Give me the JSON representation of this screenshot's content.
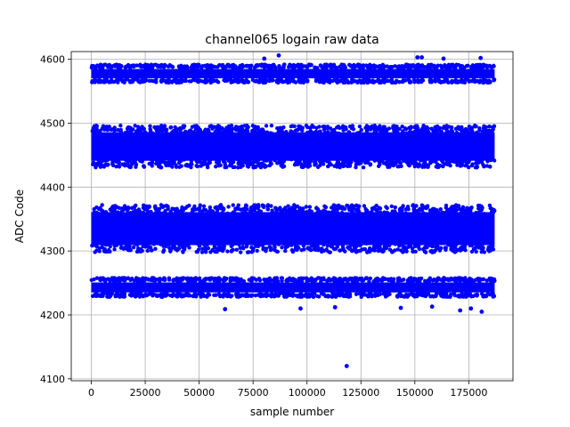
{
  "chart_data": {
    "type": "scatter",
    "title": "channel065 logain raw data",
    "xlabel": "sample number",
    "ylabel": "ADC Code",
    "xlim": [
      -9300,
      195500
    ],
    "ylim": [
      4097,
      4612
    ],
    "x_ticks": [
      0,
      25000,
      50000,
      75000,
      100000,
      125000,
      150000,
      175000
    ],
    "x_tick_labels": [
      "0",
      "25000",
      "50000",
      "75000",
      "100000",
      "125000",
      "150000",
      "175000"
    ],
    "y_ticks": [
      4100,
      4200,
      4300,
      4400,
      4500,
      4600
    ],
    "y_tick_labels": [
      "4100",
      "4200",
      "4300",
      "4400",
      "4500",
      "4600"
    ],
    "grid": true,
    "legend": "none",
    "marker_color": "#0000ff",
    "series": [
      {
        "x_range": [
          0,
          187000
        ],
        "bands": [
          {
            "y_min": 4566,
            "y_max": 4589
          },
          {
            "y_min": 4437,
            "y_max": 4490
          },
          {
            "y_min": 4305,
            "y_max": 4365
          },
          {
            "y_min": 4231,
            "y_max": 4255
          }
        ],
        "outliers": [
          {
            "x": 86900,
            "y": 4606
          },
          {
            "x": 80200,
            "y": 4601
          },
          {
            "x": 151200,
            "y": 4603
          },
          {
            "x": 153200,
            "y": 4603
          },
          {
            "x": 163300,
            "y": 4601
          },
          {
            "x": 180500,
            "y": 4602
          },
          {
            "x": 118400,
            "y": 4120
          },
          {
            "x": 62000,
            "y": 4209
          },
          {
            "x": 97000,
            "y": 4210
          },
          {
            "x": 113000,
            "y": 4212
          },
          {
            "x": 143500,
            "y": 4211
          },
          {
            "x": 158000,
            "y": 4213
          },
          {
            "x": 171000,
            "y": 4207
          },
          {
            "x": 176000,
            "y": 4210
          },
          {
            "x": 181000,
            "y": 4205
          }
        ]
      }
    ]
  }
}
